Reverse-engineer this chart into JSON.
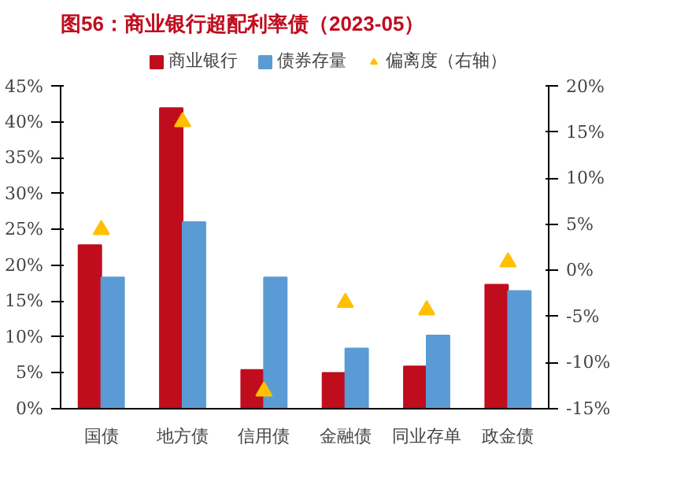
{
  "chart_data": {
    "type": "bar",
    "title": "图56：商业银行超配利率债（2023-05）",
    "categories": [
      "国债",
      "地方债",
      "信用债",
      "金融债",
      "同业存单",
      "政金债"
    ],
    "series": [
      {
        "name": "商业银行",
        "color": "#c00d1e",
        "values": [
          22.8,
          41.9,
          5.4,
          5.0,
          5.9,
          17.3
        ]
      },
      {
        "name": "债券存量",
        "color": "#5b9bd5",
        "values": [
          18.3,
          26.0,
          18.3,
          8.4,
          10.2,
          16.4
        ]
      },
      {
        "name": "偏离度（右轴）",
        "type": "scatter",
        "marker": "triangle",
        "axis": "y2",
        "color": "#ffc000",
        "values": [
          4.4,
          16.1,
          -13.1,
          -3.5,
          -4.3,
          0.9
        ]
      }
    ],
    "ylim": [
      0,
      45
    ],
    "yticks": [
      {
        "value": 0,
        "label": "0%"
      },
      {
        "value": 5,
        "label": "5%"
      },
      {
        "value": 10,
        "label": "10%"
      },
      {
        "value": 15,
        "label": "15%"
      },
      {
        "value": 20,
        "label": "20%"
      },
      {
        "value": 25,
        "label": "25%"
      },
      {
        "value": 30,
        "label": "30%"
      },
      {
        "value": 35,
        "label": "35%"
      },
      {
        "value": 40,
        "label": "40%"
      },
      {
        "value": 45,
        "label": "45%"
      }
    ],
    "y2lim": [
      -15,
      20
    ],
    "y2ticks": [
      {
        "value": -15,
        "label": "-15%"
      },
      {
        "value": -10,
        "label": "-10%"
      },
      {
        "value": -5,
        "label": "-5%"
      },
      {
        "value": 0,
        "label": "0%"
      },
      {
        "value": 5,
        "label": "5%"
      },
      {
        "value": 10,
        "label": "10%"
      },
      {
        "value": 15,
        "label": "15%"
      },
      {
        "value": 20,
        "label": "20%"
      }
    ],
    "grid": false,
    "legend": "top"
  }
}
